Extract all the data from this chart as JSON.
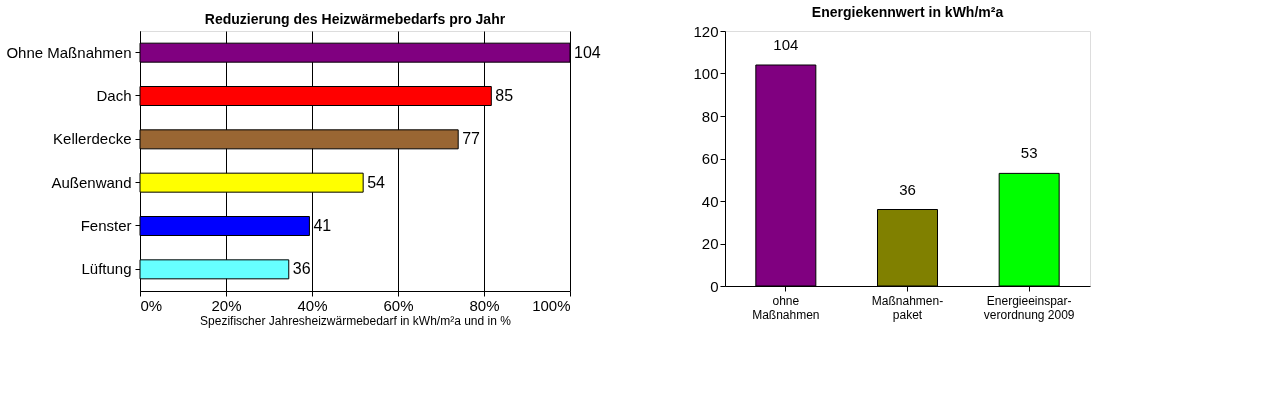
{
  "chart_data": [
    {
      "type": "bar",
      "orientation": "horizontal",
      "title": "Reduzierung des Heizwärmebedarfs pro Jahr",
      "xlabel": "Spezifischer Jahresheizwärmebedarf in kWh/m²a und in %",
      "categories": [
        "Ohne Maßnahmen",
        "Dach",
        "Kellerdecke",
        "Außenwand",
        "Fenster",
        "Lüftung"
      ],
      "values": [
        100,
        81.7,
        74.0,
        51.9,
        39.4,
        34.6
      ],
      "annotations": [
        {
          "text": "104",
          "x": 100,
          "y": "Ohne Maßnahmen"
        },
        {
          "text": "85",
          "x": 81.7,
          "y": "Dach"
        },
        {
          "text": "77",
          "x": 74.0,
          "y": "Kellerdecke"
        },
        {
          "text": "54",
          "x": 51.9,
          "y": "Außenwand"
        },
        {
          "text": "41",
          "x": 39.4,
          "y": "Fenster"
        },
        {
          "text": "36",
          "x": 34.6,
          "y": "Lüftung"
        }
      ],
      "colors": [
        "#800080",
        "#ff0000",
        "#996633",
        "#ffff00",
        "#0000ff",
        "#66ffff"
      ],
      "xlim": [
        0,
        100
      ],
      "xticks": [
        {
          "value": 0,
          "label": "0%"
        },
        {
          "value": 20,
          "label": "20%"
        },
        {
          "value": 40,
          "label": "40%"
        },
        {
          "value": 60,
          "label": "60%"
        },
        {
          "value": 80,
          "label": "80%"
        },
        {
          "value": 100,
          "label": "100%"
        }
      ],
      "grid": "x"
    },
    {
      "type": "bar",
      "title": "Energiekennwert in kWh/m²a",
      "categories": [
        "ohne Maßnahmen",
        "Maßnahmen-paket",
        "Energieeinspar-verordnung 2009"
      ],
      "values": [
        104,
        36,
        53
      ],
      "colors": [
        "#800080",
        "#808000",
        "#00ff00"
      ],
      "ylim": [
        0,
        120
      ],
      "yticks": [
        0,
        20,
        40,
        60,
        80,
        100,
        120
      ],
      "data_labels": true
    }
  ]
}
